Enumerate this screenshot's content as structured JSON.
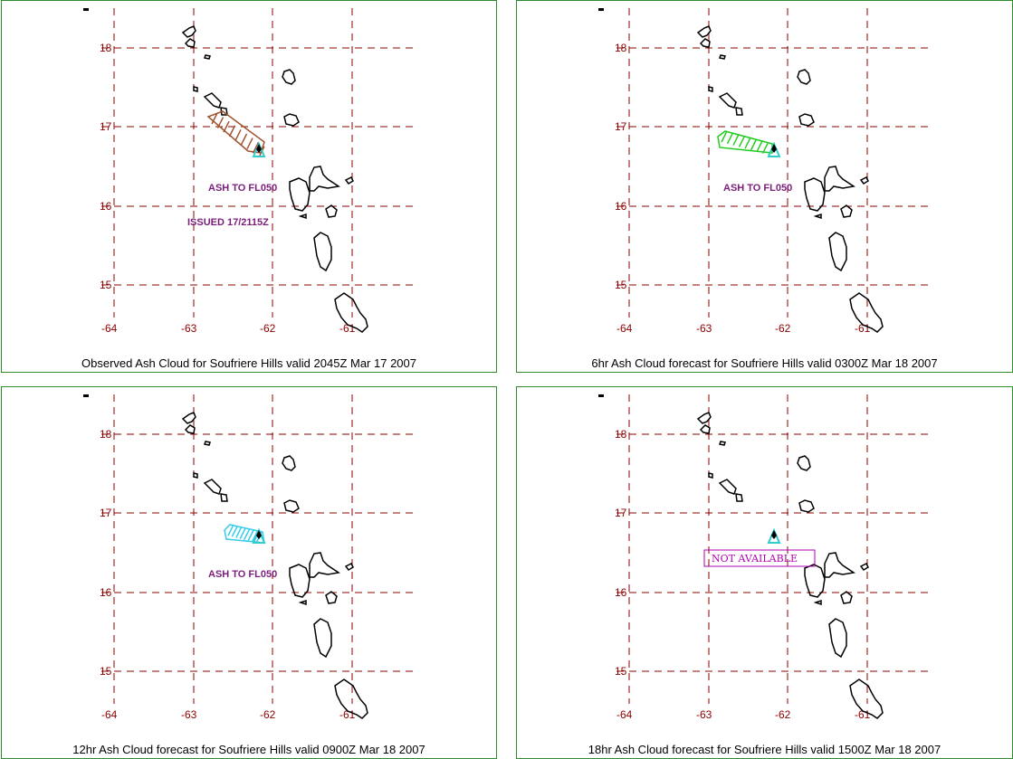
{
  "panels": [
    {
      "caption": "Observed Ash Cloud for Soufriere  Hills valid 2045Z Mar 17 2007",
      "labels": [
        "ASH TO FL050",
        "ISSUED 17/2115Z"
      ],
      "cloud_color": "#a0522d",
      "not_available": ""
    },
    {
      "caption": "6hr Ash Cloud forecast for Soufriere  Hills valid 0300Z Mar 18 2007",
      "labels": [
        "ASH TO FL050"
      ],
      "cloud_color": "#22cc22",
      "not_available": ""
    },
    {
      "caption": "12hr Ash Cloud forecast for Soufriere  Hills valid 0900Z Mar 18 2007",
      "labels": [
        "ASH TO FL050"
      ],
      "cloud_color": "#33ccee",
      "not_available": ""
    },
    {
      "caption": "18hr Ash Cloud forecast for Soufriere  Hills valid 1500Z Mar 18 2007",
      "labels": [],
      "cloud_color": "",
      "not_available": "NOT AVAILABLE"
    }
  ],
  "lat_ticks": [
    "18",
    "17",
    "16",
    "15"
  ],
  "lon_ticks": [
    "-64",
    "-63",
    "-62",
    "-61"
  ],
  "colors": {
    "grid": "#8b0000",
    "border": "#2e8b2e",
    "volcano": "#33cccc",
    "coast": "#000000",
    "label": "#7b1e7b"
  },
  "icons": [
    "volcano-triangle-icon",
    "coastline-outline"
  ]
}
